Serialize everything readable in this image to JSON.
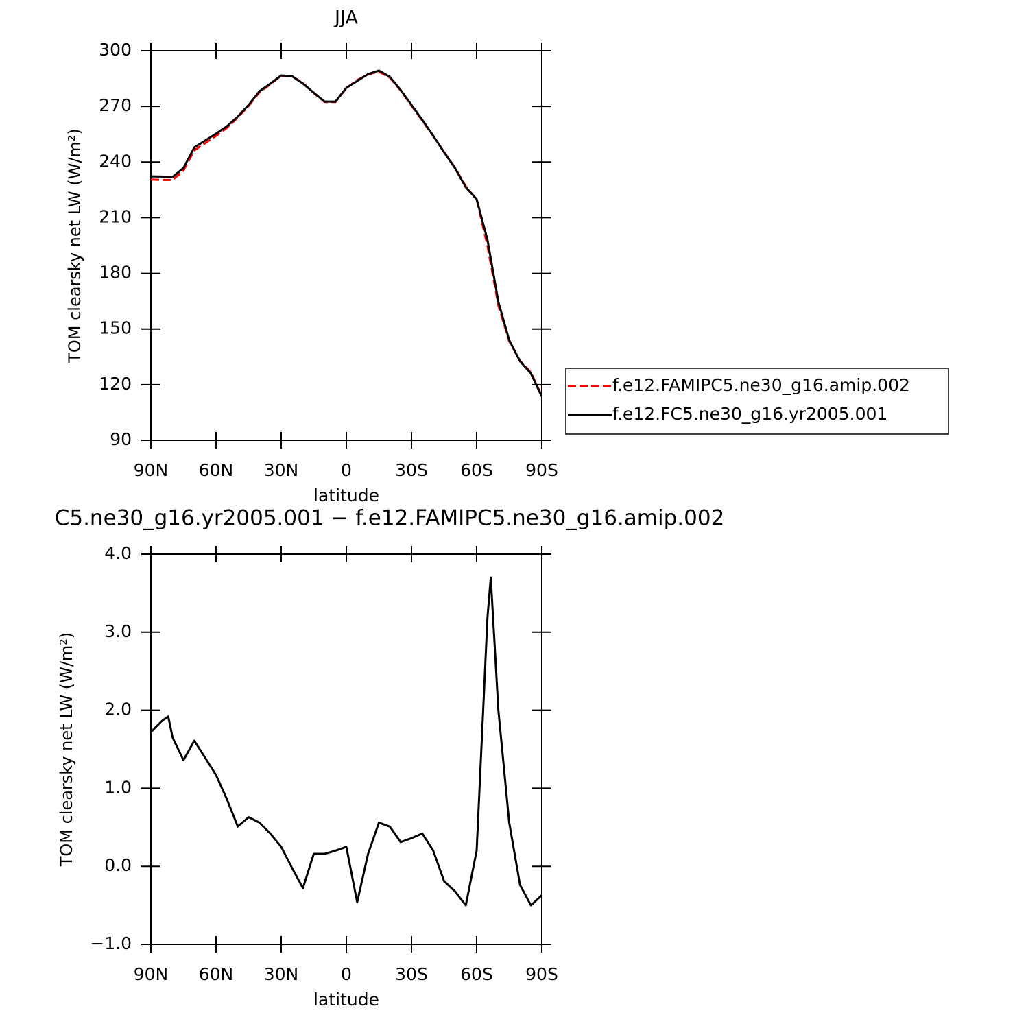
{
  "chart_data": [
    {
      "type": "line",
      "title": "JJA",
      "xlabel": "latitude",
      "ylabel": "TOM clearsky net LW (W/m²)",
      "x": [
        90,
        85,
        80,
        75,
        70,
        65,
        60,
        55,
        50,
        45,
        40,
        35,
        30,
        25,
        20,
        15,
        10,
        5,
        0,
        -5,
        -10,
        -15,
        -20,
        -25,
        -30,
        -35,
        -40,
        -45,
        -50,
        -55,
        -60,
        -65,
        -70,
        -75,
        -80,
        -85,
        -90
      ],
      "series": [
        {
          "name": "f.e12.FAMIPC5.ne30_g16.amip.002",
          "color": "#ff0000",
          "line_style": "dashed",
          "values": [
            230.6,
            230.3,
            230.4,
            235.4,
            246.3,
            250.2,
            254.1,
            258.4,
            264.0,
            270.2,
            277.6,
            281.9,
            286.5,
            286.3,
            282.6,
            277.2,
            272.4,
            272.4,
            279.8,
            284.2,
            287.2,
            288.7,
            285.5,
            278.6,
            270.4,
            262.3,
            254.0,
            245.5,
            237.1,
            226.9,
            219.8,
            194.8,
            162.7,
            143.4,
            132.8,
            126.5,
            114.0
          ]
        },
        {
          "name": "f.e12.FC5.ne30_g16.yr2005.001",
          "color": "#000000",
          "line_style": "solid",
          "values": [
            232.3,
            232.2,
            232.0,
            236.8,
            247.9,
            251.6,
            255.3,
            259.3,
            264.5,
            270.8,
            278.2,
            282.3,
            286.7,
            286.3,
            282.3,
            277.4,
            272.6,
            272.6,
            280.0,
            283.7,
            287.4,
            289.3,
            286.0,
            278.9,
            270.8,
            262.7,
            254.2,
            245.3,
            236.8,
            226.4,
            220.0,
            198.0,
            164.7,
            144.0,
            132.6,
            126.0,
            113.6
          ]
        }
      ],
      "xlim": [
        90,
        -90
      ],
      "xticks": [
        {
          "value": 90,
          "label": "90N"
        },
        {
          "value": 60,
          "label": "60N"
        },
        {
          "value": 30,
          "label": "30N"
        },
        0,
        {
          "value": -30,
          "label": "30S"
        },
        {
          "value": -60,
          "label": "60S"
        },
        {
          "value": -90,
          "label": "90S"
        }
      ],
      "ylim": [
        90,
        300
      ],
      "yticks": [
        90,
        120,
        150,
        180,
        210,
        240,
        270,
        300
      ],
      "grid": false,
      "legend": "right"
    },
    {
      "type": "line",
      "title": "C5.ne30_g16.yr2005.001 − f.e12.FAMIPC5.ne30_g16.amip.002",
      "xlabel": "latitude",
      "ylabel": "TOM clearsky net LW (W/m²)",
      "x": [
        90,
        85,
        82,
        80,
        75,
        70,
        65,
        60,
        55,
        50,
        45,
        40,
        35,
        30,
        25,
        20,
        15,
        10,
        5,
        0,
        -5,
        -10,
        -15,
        -20,
        -25,
        -30,
        -35,
        -40,
        -45,
        -50,
        -55,
        -60,
        -65,
        -66.5,
        -70,
        -75,
        -80,
        -85,
        -90
      ],
      "series": [
        {
          "color": "#000000",
          "line_style": "solid",
          "values": [
            1.72,
            1.86,
            1.92,
            1.65,
            1.36,
            1.61,
            1.39,
            1.17,
            0.86,
            0.51,
            0.63,
            0.56,
            0.42,
            0.25,
            -0.02,
            -0.28,
            0.16,
            0.16,
            0.2,
            0.25,
            -0.46,
            0.16,
            0.56,
            0.51,
            0.31,
            0.36,
            0.42,
            0.2,
            -0.19,
            -0.32,
            -0.5,
            0.2,
            3.19,
            3.7,
            2.0,
            0.56,
            -0.24,
            -0.5,
            -0.37
          ]
        }
      ],
      "xlim": [
        90,
        -90
      ],
      "xticks": [
        {
          "value": 90,
          "label": "90N"
        },
        {
          "value": 60,
          "label": "60N"
        },
        {
          "value": 30,
          "label": "30N"
        },
        0,
        {
          "value": -30,
          "label": "30S"
        },
        {
          "value": -60,
          "label": "60S"
        },
        {
          "value": -90,
          "label": "90S"
        }
      ],
      "ylim": [
        -1,
        4
      ],
      "yticks": [
        {
          "value": -1,
          "label": "−1.0"
        },
        {
          "value": 0,
          "label": "0.0"
        },
        {
          "value": 1,
          "label": "1.0"
        },
        {
          "value": 2,
          "label": "2.0"
        },
        {
          "value": 3,
          "label": "3.0"
        },
        {
          "value": 4,
          "label": "4.0"
        }
      ],
      "grid": false
    }
  ]
}
